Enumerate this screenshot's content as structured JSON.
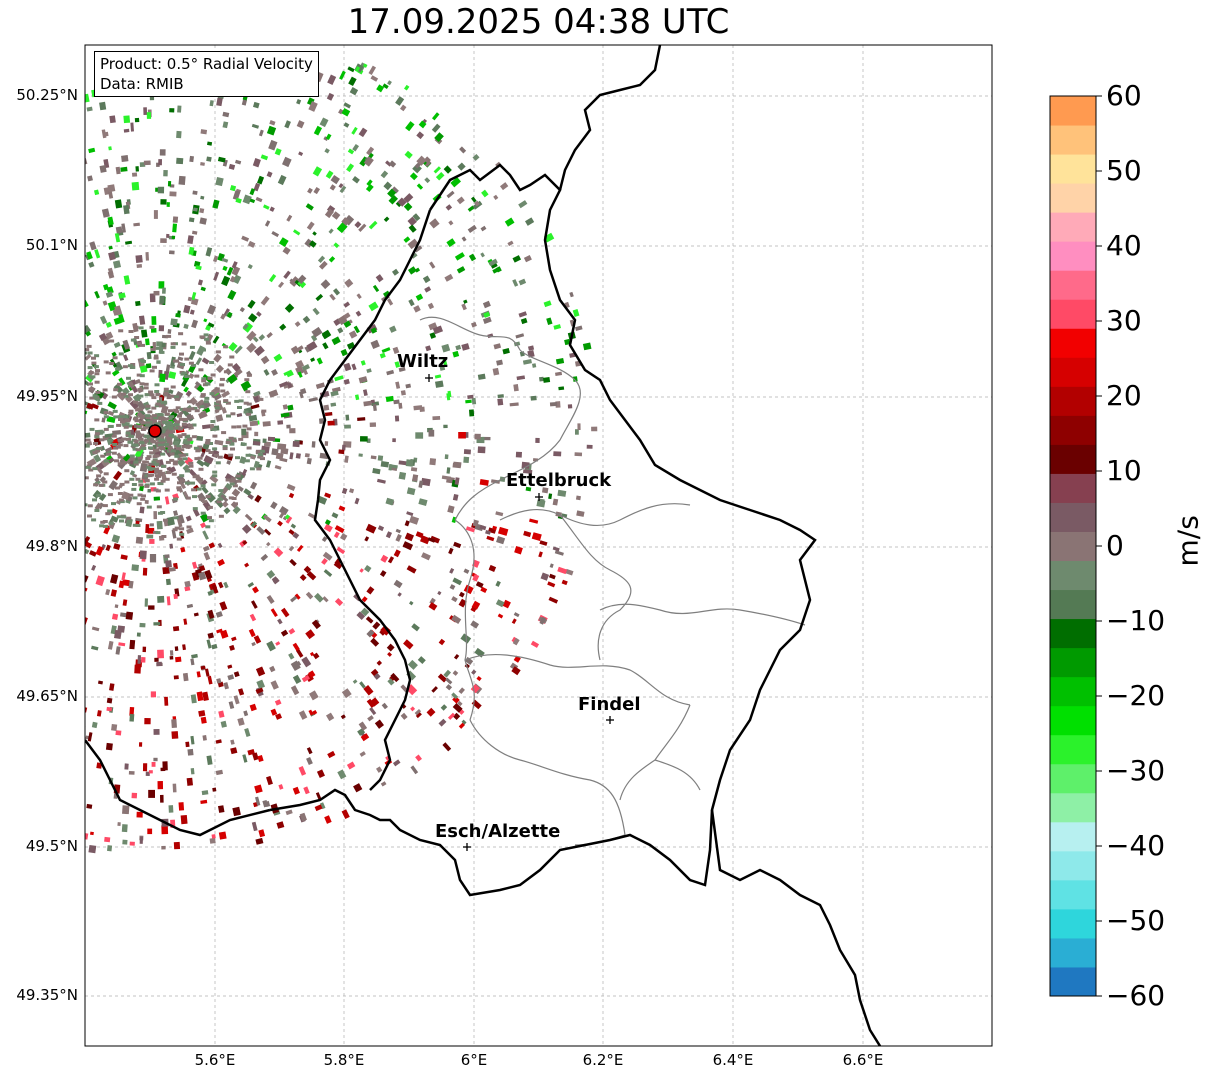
{
  "title": "17.09.2025 04:38 UTC",
  "legend": {
    "product": "Product: 0.5° Radial Velocity",
    "data": "Data: RMIB"
  },
  "lat_labels": [
    "50.25°N",
    "50.1°N",
    "49.95°N",
    "49.8°N",
    "49.65°N",
    "49.5°N",
    "49.35°N"
  ],
  "lon_labels": [
    "5.6°E",
    "5.8°E",
    "6°E",
    "6.2°E",
    "6.4°E",
    "6.6°E"
  ],
  "cities": {
    "wiltz": "Wiltz",
    "ettelbruck": "Ettelbruck",
    "findel": "Findel",
    "esch": "Esch/Alzette"
  },
  "colorbar": {
    "ticks": [
      "60",
      "50",
      "40",
      "30",
      "20",
      "10",
      "0",
      "−10",
      "−20",
      "−30",
      "−40",
      "−50",
      "−60"
    ],
    "unit": "m/s",
    "range": [
      -60,
      60
    ],
    "colors": [
      "#1f78c1",
      "#2aaed4",
      "#2ed6dc",
      "#5fe2e4",
      "#8ee9ea",
      "#b7f0f0",
      "#8ef0a6",
      "#5ef06a",
      "#2bf22b",
      "#00e000",
      "#00c000",
      "#009a00",
      "#006e00",
      "#547a54",
      "#6e8a6e",
      "#8a7474",
      "#7a5a64",
      "#864050",
      "#6a0000",
      "#8e0000",
      "#b20000",
      "#d60000",
      "#f20000",
      "#ff4a66",
      "#ff6a8a",
      "#ff8ec0",
      "#ffaab8",
      "#ffd3a8",
      "#ffe39a",
      "#ffc27a",
      "#ff9a50"
    ]
  }
}
